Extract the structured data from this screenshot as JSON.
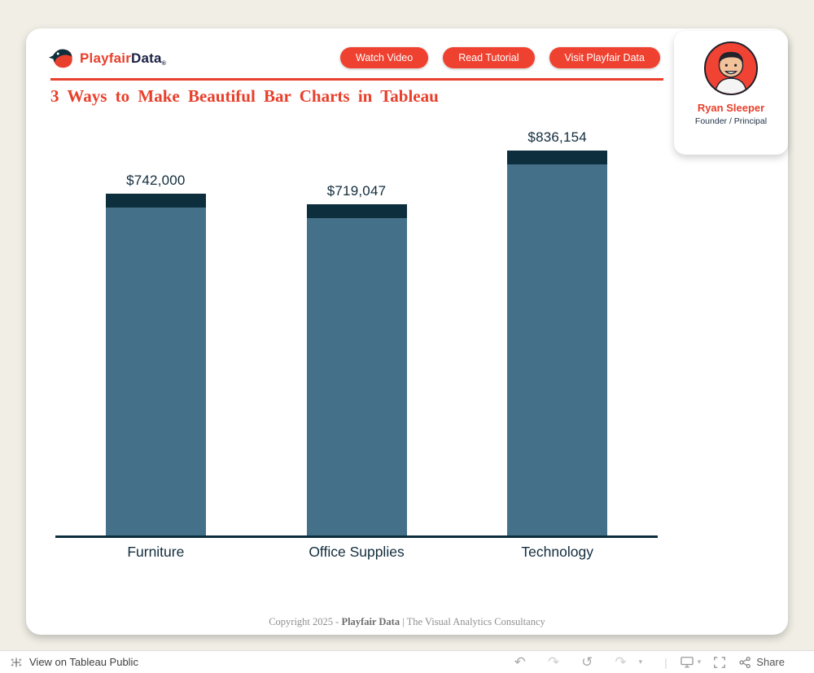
{
  "header": {
    "brand": {
      "first": "Playfair",
      "second": "Data",
      "reg": "®"
    },
    "buttons": [
      {
        "label": "Watch Video"
      },
      {
        "label": "Read Tutorial"
      },
      {
        "label": "Visit Playfair Data"
      }
    ],
    "title": "3 Ways to Make Beautiful Bar Charts in Tableau"
  },
  "profile": {
    "name": "Ryan Sleeper",
    "role": "Founder / Principal"
  },
  "chart_data": {
    "type": "bar",
    "title": "3 Ways to Make Beautiful Bar Charts in Tableau",
    "categories": [
      "Furniture",
      "Office Supplies",
      "Technology"
    ],
    "values": [
      742000,
      719047,
      836154
    ],
    "value_labels": [
      "$742,000",
      "$719,047",
      "$836,154"
    ],
    "ylim": [
      0,
      836154
    ],
    "xlabel": "",
    "ylabel": "",
    "legend": "none",
    "grid": "off",
    "bar_color": "#44708a",
    "cap_color": "#0d2e3c",
    "axis_color": "#0d2e3c",
    "label_color": "#122c3d"
  },
  "footer": {
    "prefix": "Copyright 2025 - ",
    "brand": "Playfair Data",
    "suffix": " | The Visual Analytics Consultancy"
  },
  "toolbar": {
    "view_label": "View on Tableau Public",
    "share_label": "Share"
  },
  "colors": {
    "accent_red": "#e8402c",
    "button_red": "#ef4130",
    "navy": "#0d2e3c",
    "bar_blue": "#44708a",
    "background_beige": "#f0eee5"
  }
}
